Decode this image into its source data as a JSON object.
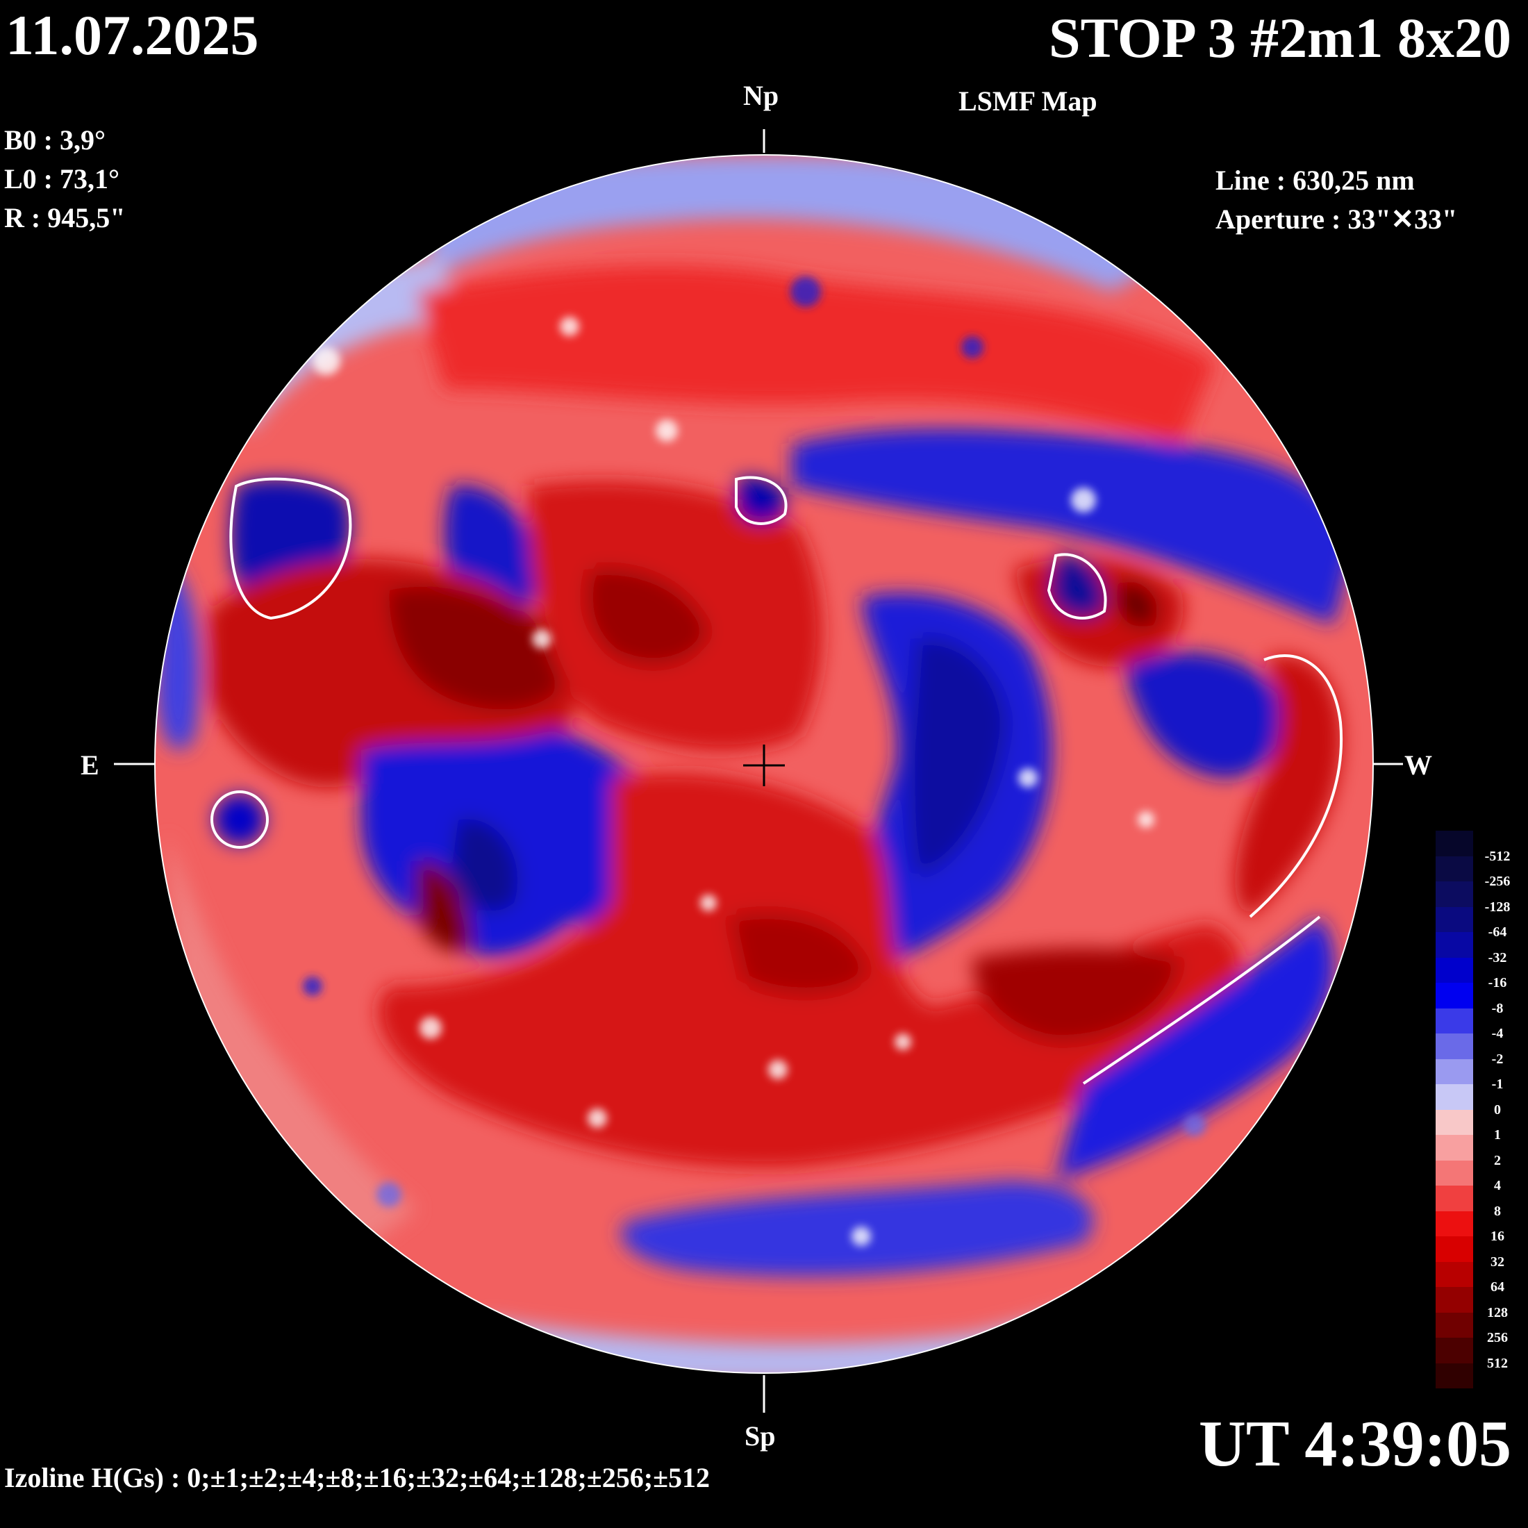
{
  "header": {
    "date": "11.07.2025",
    "title": "STOP 3 #2m1 8x20",
    "subtitle": "LSMF  Map"
  },
  "params": {
    "b0": "B0 : 3,9°",
    "l0": "L0 : 73,1°",
    "r": "R  : 945,5\""
  },
  "instrument": {
    "line": "Line :  630,25 nm",
    "aperture": "Aperture : 33\"✕33\""
  },
  "directions": {
    "north": "Np",
    "south": "Sp",
    "east": "E",
    "west": "W"
  },
  "footer": {
    "izoline": "Izoline H(Gs) : 0;±1;±2;±4;±8;±16;±32;±64;±128;±256;±512",
    "time": "UT 4:39:05"
  },
  "legend": {
    "labels": [
      "-512",
      "-256",
      "-128",
      "-64",
      "-32",
      "-16",
      "-8",
      "-4",
      "-2",
      "-1",
      "0",
      "1",
      "2",
      "4",
      "8",
      "16",
      "32",
      "64",
      "128",
      "256",
      "512"
    ],
    "colors": [
      "#06062a",
      "#0a0a44",
      "#0c0c60",
      "#0a0a80",
      "#0808a4",
      "#0000cc",
      "#0000f0",
      "#3a3ae8",
      "#6a6ae8",
      "#9a9af0",
      "#c8c8f6",
      "#f8c8c8",
      "#f8a0a0",
      "#f47676",
      "#f04040",
      "#ec1010",
      "#d80000",
      "#b80000",
      "#940000",
      "#700000",
      "#4c0000",
      "#300000"
    ]
  },
  "map": {
    "positive_color": "#ec1c1c",
    "negative_color": "#1818e6",
    "contour_color": "#ffffff"
  }
}
